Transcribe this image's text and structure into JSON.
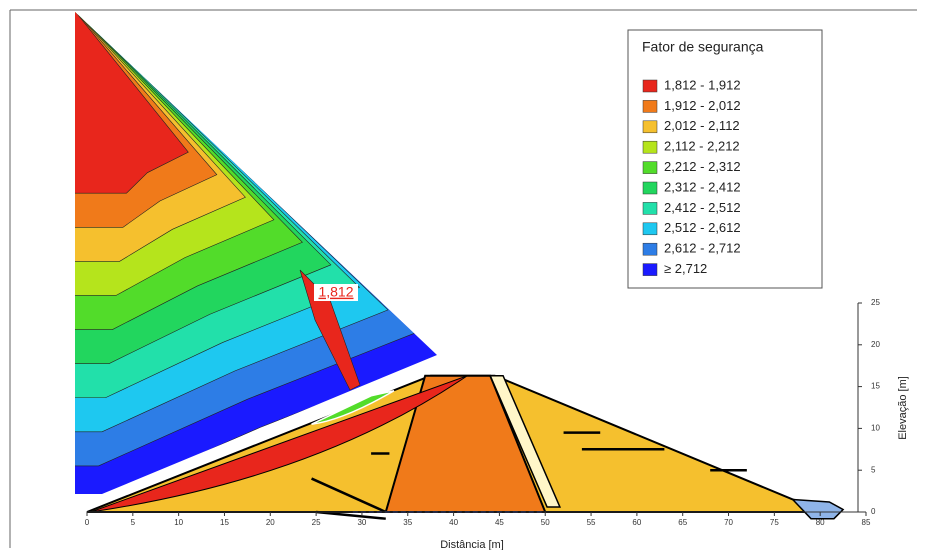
{
  "chart_data": {
    "type": "contour",
    "legend_title": "Fator de segurança",
    "series": [
      {
        "name": "1,812 - 1,912",
        "color": "#e8261c"
      },
      {
        "name": "1,912 - 2,012",
        "color": "#f07a1a"
      },
      {
        "name": "2,012 - 2,112",
        "color": "#f5c02e"
      },
      {
        "name": "2,112 - 2,212",
        "color": "#b5e41c"
      },
      {
        "name": "2,212 - 2,312",
        "color": "#52dc2a"
      },
      {
        "name": "2,312 - 2,412",
        "color": "#22d65e"
      },
      {
        "name": "2,412 - 2,512",
        "color": "#22e0aa"
      },
      {
        "name": "2,512 - 2,612",
        "color": "#1ec8f0"
      },
      {
        "name": "2,612 - 2,712",
        "color": "#2d7de6"
      },
      {
        "name": "≥ 2,712",
        "color": "#1a1aff"
      }
    ],
    "annotation": "1,812",
    "xlabel": "Distância [m]",
    "ylabel": "Elevação [m]",
    "xlim": [
      0,
      85
    ],
    "xticks": [
      0,
      5,
      10,
      15,
      20,
      25,
      30,
      35,
      40,
      45,
      50,
      55,
      60,
      65,
      70,
      75,
      80,
      85
    ],
    "ylim": [
      0,
      25
    ],
    "yticks": [
      0,
      5,
      10,
      15,
      20,
      25
    ]
  }
}
